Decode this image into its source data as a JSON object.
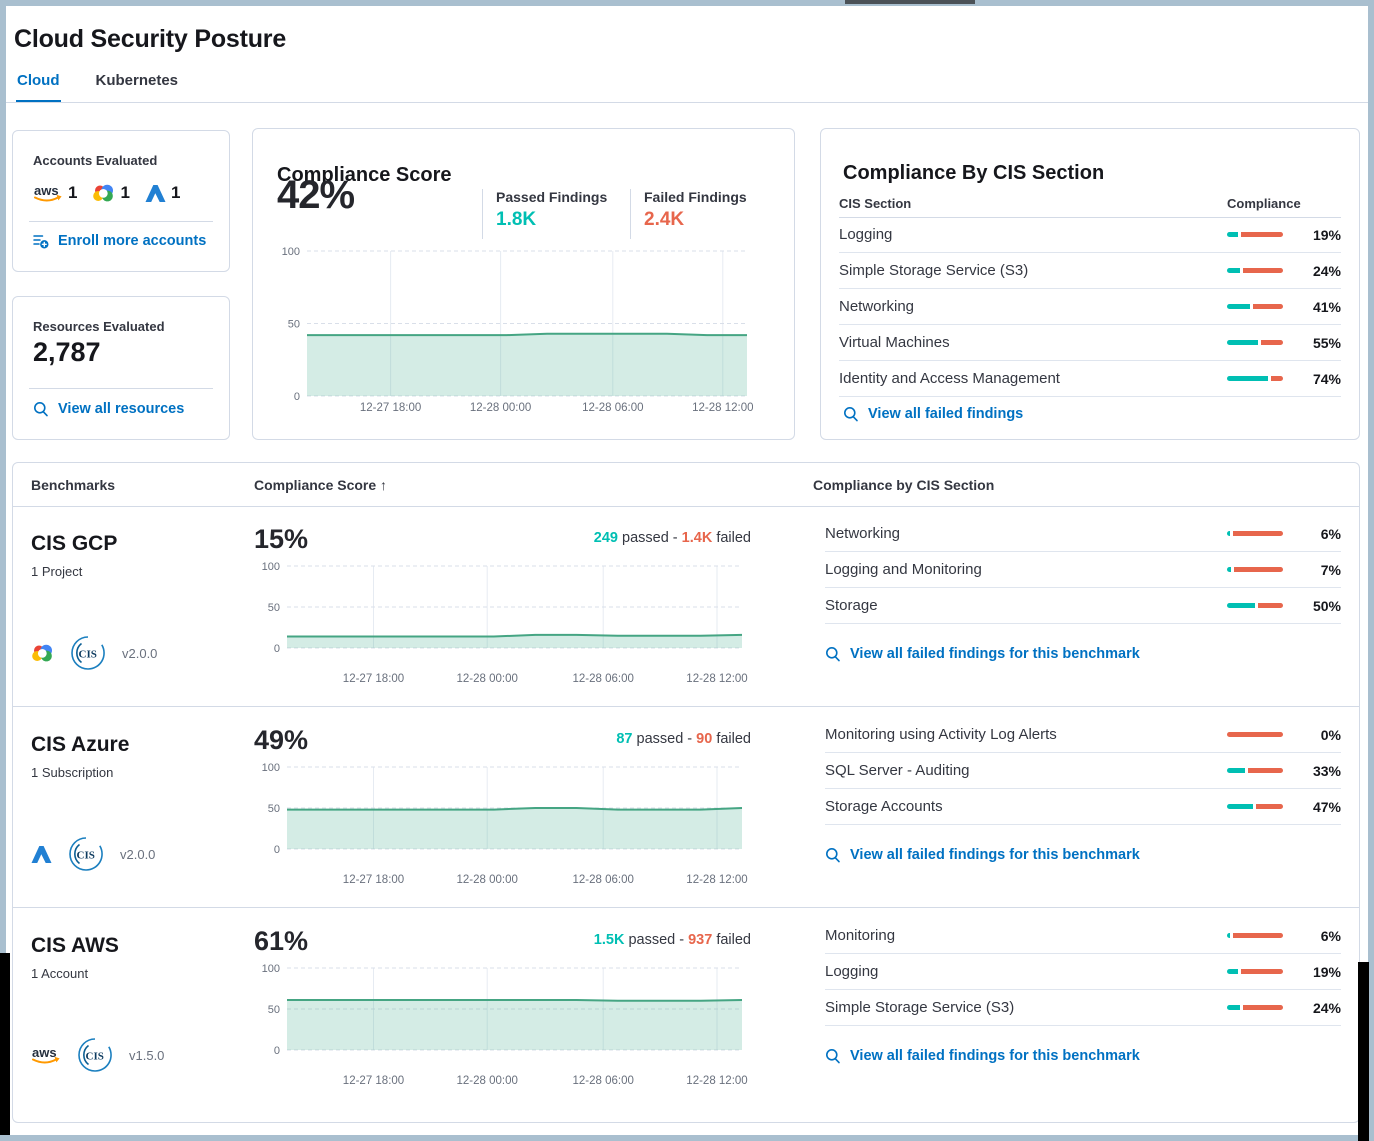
{
  "page": {
    "title": "Cloud Security Posture"
  },
  "tabs": {
    "cloud": "Cloud",
    "kubernetes": "Kubernetes"
  },
  "accounts_card": {
    "title": "Accounts Evaluated",
    "providers": [
      {
        "icon": "aws-logo",
        "count": "1"
      },
      {
        "icon": "gcp-logo",
        "count": "1"
      },
      {
        "icon": "azure-logo",
        "count": "1"
      }
    ],
    "enroll_link": "Enroll more accounts"
  },
  "resources_card": {
    "title": "Resources Evaluated",
    "value": "2,787",
    "view_link": "View all resources"
  },
  "score_card": {
    "title": "Compliance Score",
    "score": "42%",
    "passed_label": "Passed Findings",
    "passed_value": "1.8K",
    "failed_label": "Failed Findings",
    "failed_value": "2.4K"
  },
  "cis_card": {
    "title": "Compliance By CIS Section",
    "columns": {
      "section": "CIS Section",
      "compliance": "Compliance"
    },
    "rows": [
      {
        "name": "Logging",
        "pct": 19
      },
      {
        "name": "Simple Storage Service (S3)",
        "pct": 24
      },
      {
        "name": "Networking",
        "pct": 41
      },
      {
        "name": "Virtual Machines",
        "pct": 55
      },
      {
        "name": "Identity and Access Management",
        "pct": 74
      }
    ],
    "link": "View all failed findings"
  },
  "benchmarks": {
    "columns": {
      "benchmarks": "Benchmarks",
      "score": "Compliance Score",
      "sort_arrow": "↑",
      "sections": "Compliance by CIS Section"
    },
    "passed_word": "passed",
    "dash": "-",
    "failed_word": "failed",
    "rows": [
      {
        "name": "CIS GCP",
        "subtitle": "1 Project",
        "provider": "gcp",
        "version": "v2.0.0",
        "score": "15%",
        "passed": "249",
        "failed": "1.4K",
        "sections": [
          {
            "name": "Networking",
            "pct": 6
          },
          {
            "name": "Logging and Monitoring",
            "pct": 7
          },
          {
            "name": "Storage",
            "pct": 50
          }
        ],
        "link": "View all failed findings for this benchmark",
        "trend": [
          14,
          14,
          14,
          14,
          14,
          14,
          16,
          16,
          15,
          15,
          15,
          16
        ]
      },
      {
        "name": "CIS Azure",
        "subtitle": "1 Subscription",
        "provider": "azure",
        "version": "v2.0.0",
        "score": "49%",
        "passed": "87",
        "failed": "90",
        "sections": [
          {
            "name": "Monitoring using Activity Log Alerts",
            "pct": 0
          },
          {
            "name": "SQL Server - Auditing",
            "pct": 33
          },
          {
            "name": "Storage Accounts",
            "pct": 47
          }
        ],
        "link": "View all failed findings for this benchmark",
        "trend": [
          48,
          48,
          48,
          48,
          48,
          48,
          50,
          50,
          48,
          48,
          48,
          50
        ]
      },
      {
        "name": "CIS AWS",
        "subtitle": "1 Account",
        "provider": "aws",
        "version": "v1.5.0",
        "score": "61%",
        "passed": "1.5K",
        "failed": "937",
        "sections": [
          {
            "name": "Monitoring",
            "pct": 6
          },
          {
            "name": "Logging",
            "pct": 19
          },
          {
            "name": "Simple Storage Service (S3)",
            "pct": 24
          }
        ],
        "link": "View all failed findings for this benchmark",
        "trend": [
          61,
          61,
          61,
          61,
          61,
          61,
          61,
          61,
          60,
          60,
          60,
          61
        ]
      }
    ]
  },
  "chart_data": {
    "type": "area",
    "x_ticks": [
      "12-27 18:00",
      "12-28 00:00",
      "12-28 06:00",
      "12-28 12:00"
    ],
    "y_ticks": [
      "100",
      "50",
      "0"
    ],
    "ylim": [
      0,
      100
    ],
    "score_trend": [
      42,
      42,
      42,
      42,
      42,
      42,
      43,
      43,
      43,
      43,
      42,
      42
    ]
  },
  "colors": {
    "teal": "#00BFB3",
    "salmon": "#E7664C",
    "link_blue": "#0071C2",
    "chart_line": "#45A583",
    "chart_fill_base": "#54B399",
    "frame": "#A9BFCF"
  }
}
